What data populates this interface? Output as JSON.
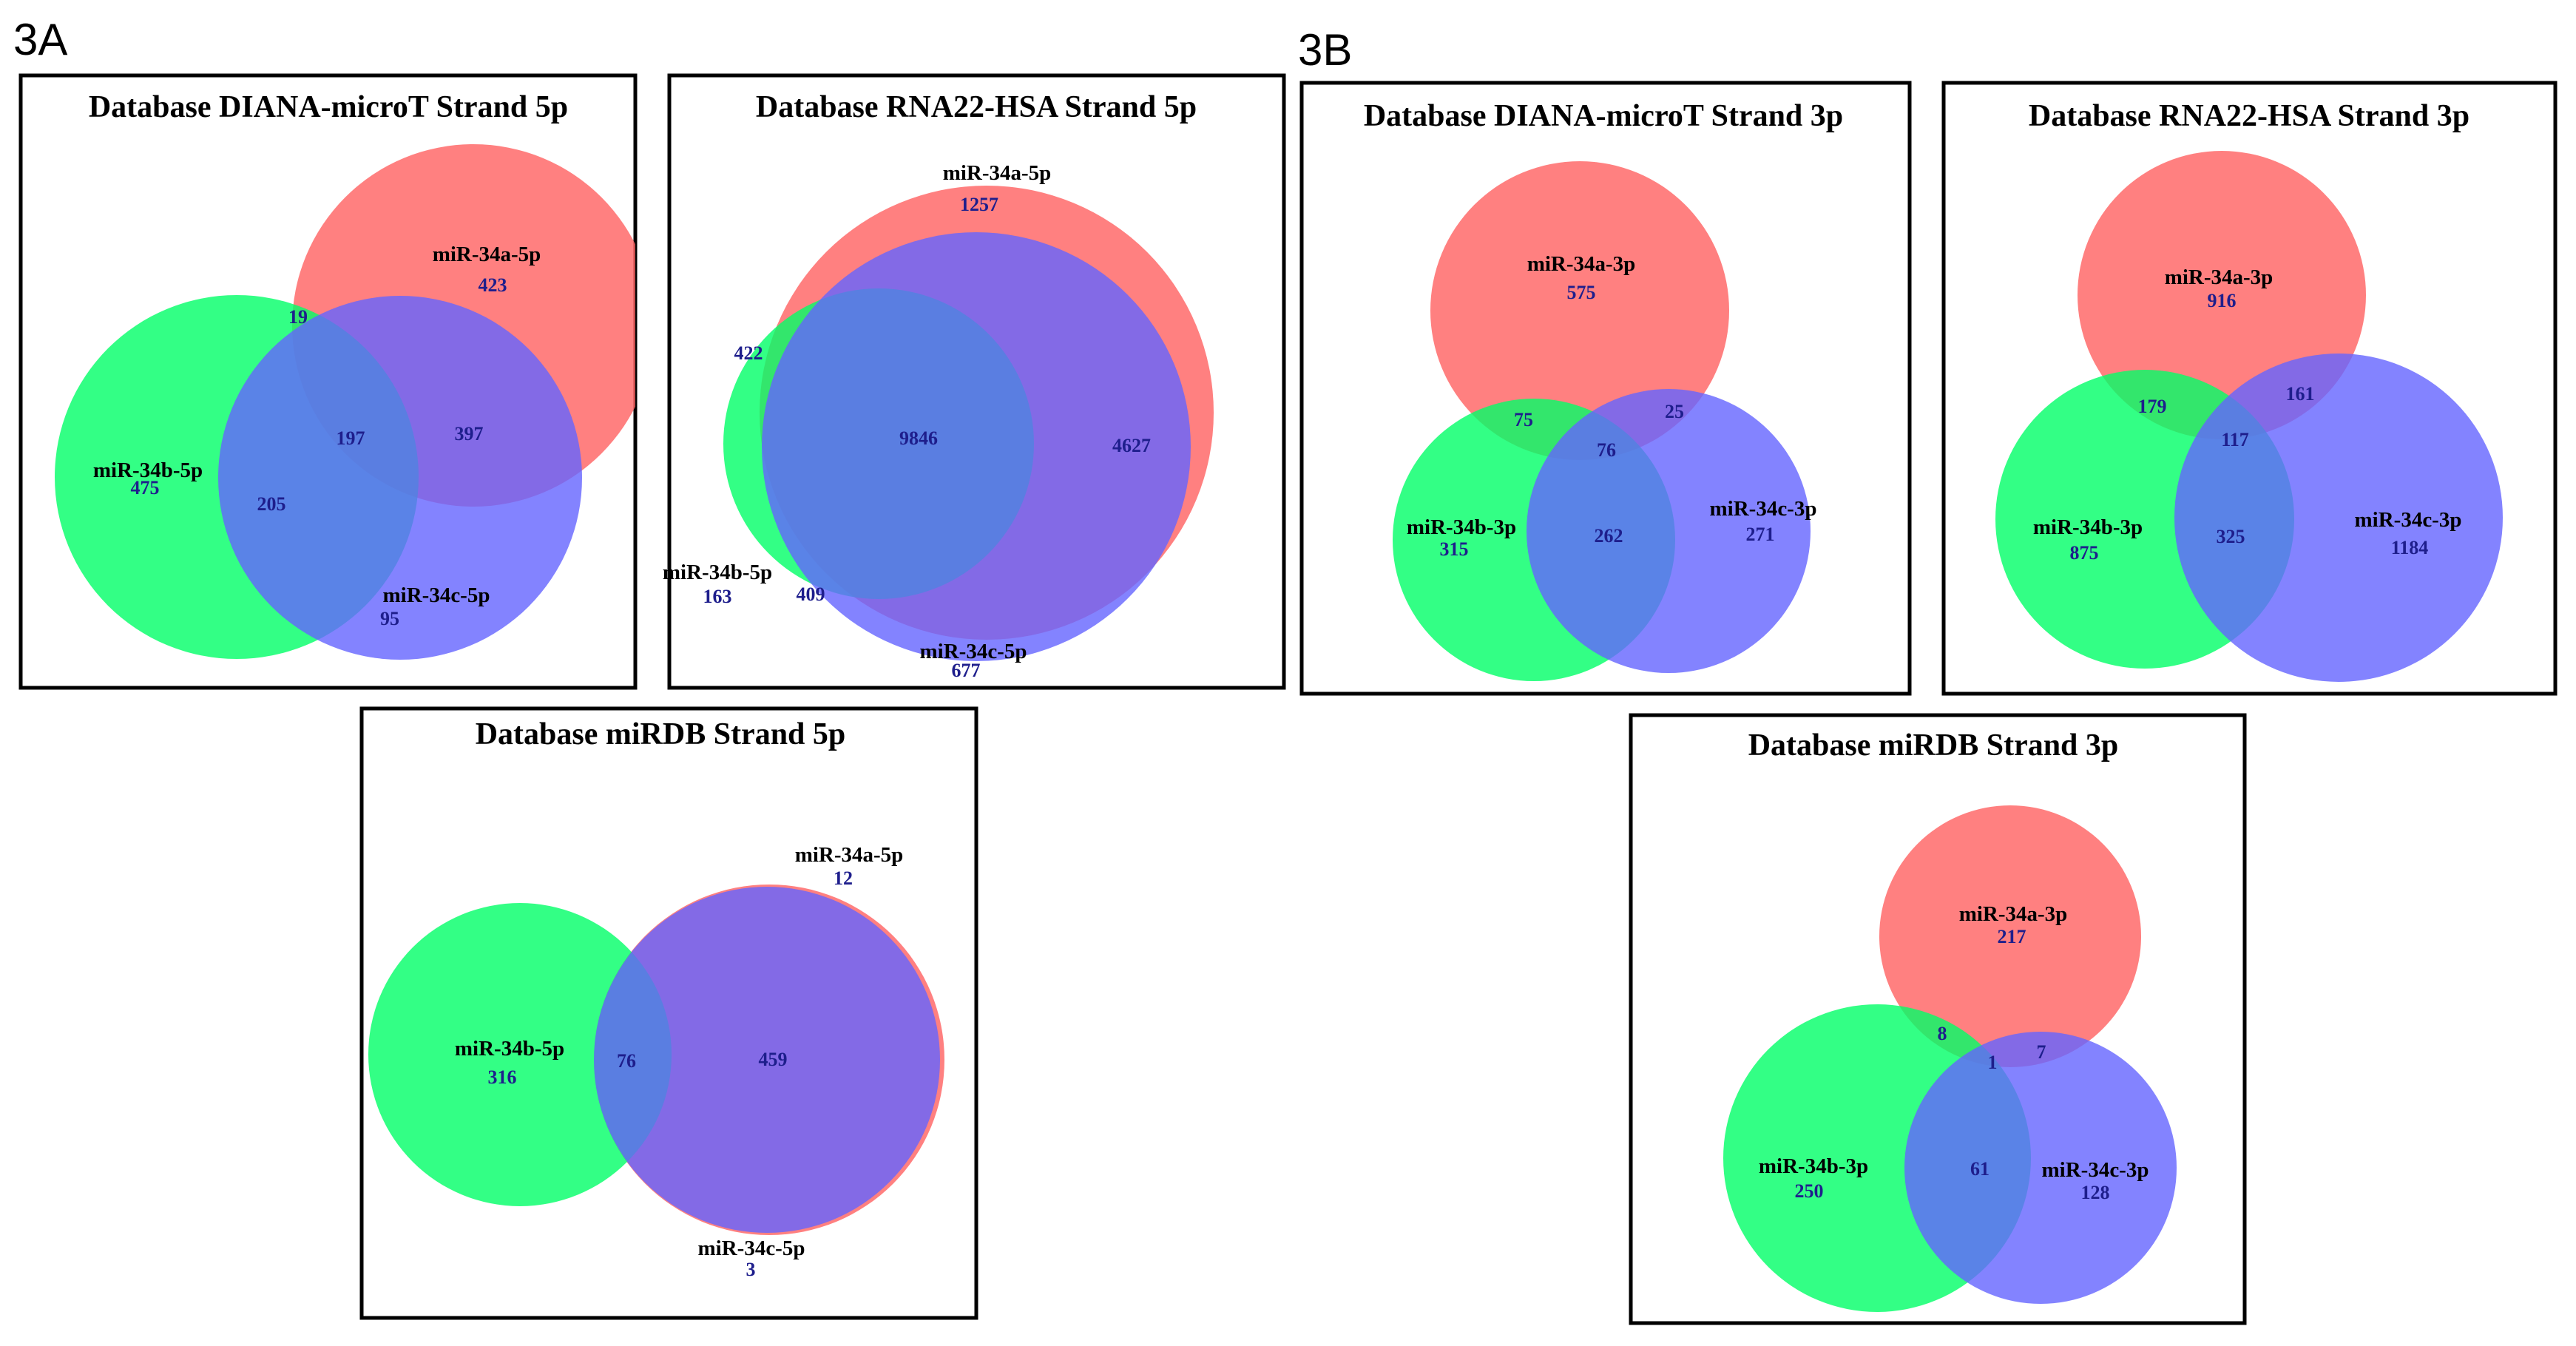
{
  "panels": {
    "a": "3A",
    "b": "3B"
  },
  "colors": {
    "red": "#ff6060",
    "green": "#00ff66",
    "blue": "#6464ff"
  },
  "diagrams": [
    {
      "id": "diana5p",
      "title": "Database DIANA-microT Strand 5p",
      "sets": [
        {
          "key": "A",
          "name": "miR-34a-5p",
          "color": "red"
        },
        {
          "key": "B",
          "name": "miR-34b-5p",
          "color": "green"
        },
        {
          "key": "C",
          "name": "miR-34c-5p",
          "color": "blue"
        }
      ],
      "regions": {
        "A": "423",
        "B": "475",
        "C": "95",
        "AB": "19",
        "AC": "397",
        "BC": "205",
        "ABC": "197"
      }
    },
    {
      "id": "rna22_5p",
      "title": "Database RNA22-HSA Strand 5p",
      "sets": [
        {
          "key": "A",
          "name": "miR-34a-5p",
          "color": "red"
        },
        {
          "key": "B",
          "name": "miR-34b-5p",
          "color": "green"
        },
        {
          "key": "C",
          "name": "miR-34c-5p",
          "color": "blue"
        }
      ],
      "regions": {
        "A": "1257",
        "B": "163",
        "C": "677",
        "AB": "422",
        "AC": "4627",
        "BC": "409",
        "ABC": "9846"
      }
    },
    {
      "id": "mirdb5p",
      "title": "Database miRDB Strand 5p",
      "sets": [
        {
          "key": "A",
          "name": "miR-34a-5p",
          "color": "red"
        },
        {
          "key": "B",
          "name": "miR-34b-5p",
          "color": "green"
        },
        {
          "key": "C",
          "name": "miR-34c-5p",
          "color": "blue"
        }
      ],
      "regions": {
        "A": "12",
        "B": "316",
        "C": "3",
        "BC": "76",
        "AC": "459"
      }
    },
    {
      "id": "diana3p",
      "title": "Database DIANA-microT Strand 3p",
      "sets": [
        {
          "key": "A",
          "name": "miR-34a-3p",
          "color": "red"
        },
        {
          "key": "B",
          "name": "miR-34b-3p",
          "color": "green"
        },
        {
          "key": "C",
          "name": "miR-34c-3p",
          "color": "blue"
        }
      ],
      "regions": {
        "A": "575",
        "B": "315",
        "C": "271",
        "AB": "75",
        "AC": "25",
        "BC": "262",
        "ABC": "76"
      }
    },
    {
      "id": "rna22_3p",
      "title": "Database RNA22-HSA Strand 3p",
      "sets": [
        {
          "key": "A",
          "name": "miR-34a-3p",
          "color": "red"
        },
        {
          "key": "B",
          "name": "miR-34b-3p",
          "color": "green"
        },
        {
          "key": "C",
          "name": "miR-34c-3p",
          "color": "blue"
        }
      ],
      "regions": {
        "A": "916",
        "B": "875",
        "C": "1184",
        "AB": "179",
        "AC": "161",
        "BC": "325",
        "ABC": "117"
      }
    },
    {
      "id": "mirdb3p",
      "title": "Database miRDB Strand 3p",
      "sets": [
        {
          "key": "A",
          "name": "miR-34a-3p",
          "color": "red"
        },
        {
          "key": "B",
          "name": "miR-34b-3p",
          "color": "green"
        },
        {
          "key": "C",
          "name": "miR-34c-3p",
          "color": "blue"
        }
      ],
      "regions": {
        "A": "217",
        "B": "250",
        "C": "128",
        "AB": "8",
        "AC": "7",
        "BC": "61",
        "ABC": "1"
      }
    }
  ]
}
